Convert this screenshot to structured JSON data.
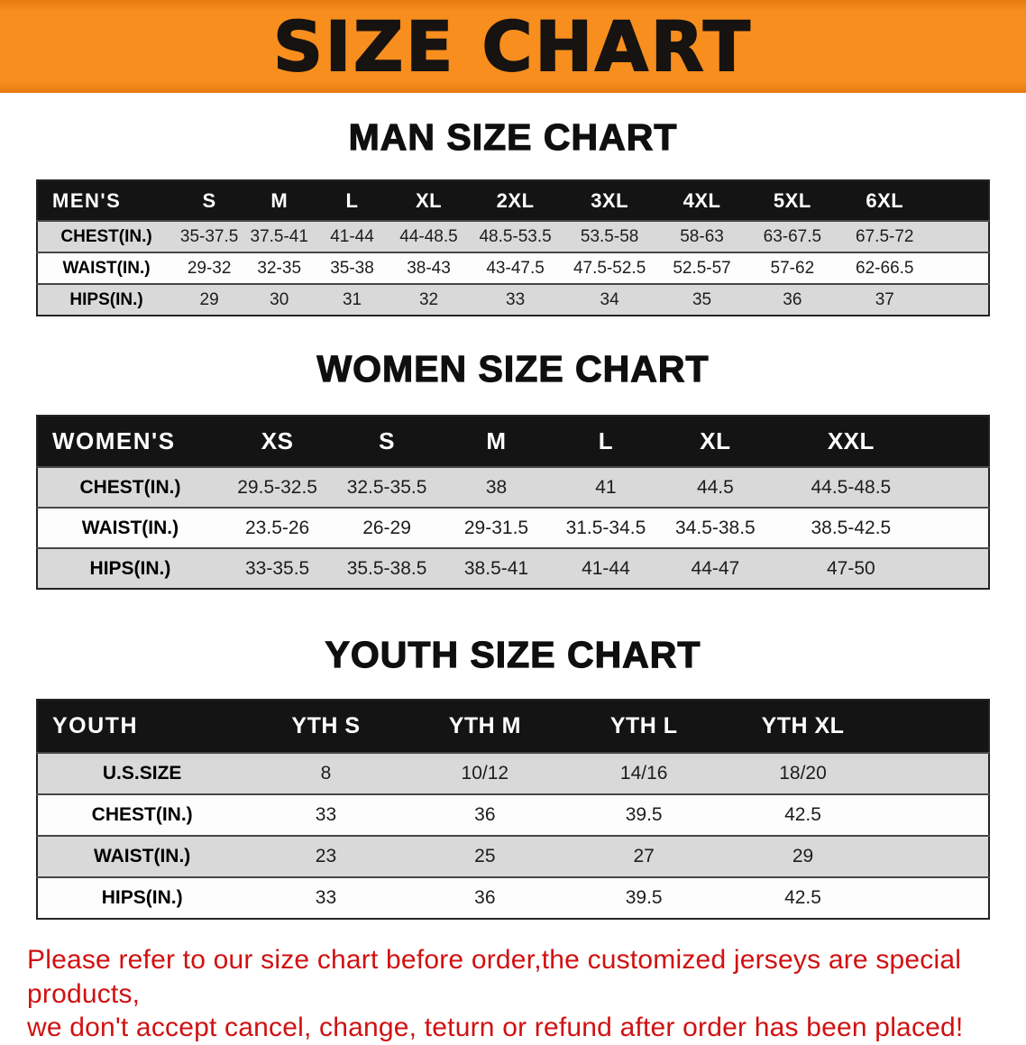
{
  "banner": {
    "title": "SIZE CHART"
  },
  "colors": {
    "banner_orange": "#F78E1E",
    "table_header_black": "#141414",
    "stripe_gray": "#D9D9D9",
    "disclaimer_red": "#D01111"
  },
  "men": {
    "heading": "MAN SIZE CHART",
    "table": {
      "header": [
        "MEN'S",
        "S",
        "M",
        "L",
        "XL",
        "2XL",
        "3XL",
        "4XL",
        "5XL",
        "6XL"
      ],
      "rows": [
        {
          "label": "CHEST(IN.)",
          "values": [
            "35-37.5",
            "37.5-41",
            "41-44",
            "44-48.5",
            "48.5-53.5",
            "53.5-58",
            "58-63",
            "63-67.5",
            "67.5-72"
          ]
        },
        {
          "label": "WAIST(IN.)",
          "values": [
            "29-32",
            "32-35",
            "35-38",
            "38-43",
            "43-47.5",
            "47.5-52.5",
            "52.5-57",
            "57-62",
            "62-66.5"
          ]
        },
        {
          "label": "HIPS(IN.)",
          "values": [
            "29",
            "30",
            "31",
            "32",
            "33",
            "34",
            "35",
            "36",
            "37"
          ]
        }
      ]
    }
  },
  "women": {
    "heading": "WOMEN SIZE CHART",
    "table": {
      "header": [
        "WOMEN'S",
        "XS",
        "S",
        "M",
        "L",
        "XL",
        "XXL"
      ],
      "rows": [
        {
          "label": "CHEST(IN.)",
          "values": [
            "29.5-32.5",
            "32.5-35.5",
            "38",
            "41",
            "44.5",
            "44.5-48.5"
          ]
        },
        {
          "label": "WAIST(IN.)",
          "values": [
            "23.5-26",
            "26-29",
            "29-31.5",
            "31.5-34.5",
            "34.5-38.5",
            "38.5-42.5"
          ]
        },
        {
          "label": "HIPS(IN.)",
          "values": [
            "33-35.5",
            "35.5-38.5",
            "38.5-41",
            "41-44",
            "44-47",
            "47-50"
          ]
        }
      ]
    }
  },
  "youth": {
    "heading": "YOUTH SIZE CHART",
    "table": {
      "header": [
        "YOUTH",
        "YTH S",
        "YTH M",
        "YTH L",
        "YTH XL"
      ],
      "rows": [
        {
          "label": "U.S.SIZE",
          "values": [
            "8",
            "10/12",
            "14/16",
            "18/20"
          ]
        },
        {
          "label": "CHEST(IN.)",
          "values": [
            "33",
            "36",
            "39.5",
            "42.5"
          ]
        },
        {
          "label": "WAIST(IN.)",
          "values": [
            "23",
            "25",
            "27",
            "29"
          ]
        },
        {
          "label": "HIPS(IN.)",
          "values": [
            "33",
            "36",
            "39.5",
            "42.5"
          ]
        }
      ]
    }
  },
  "disclaimer": {
    "line1": "Please refer to our size chart before order,the customized jerseys are special products,",
    "line2": "we don't accept cancel, change, teturn or refund after order has been placed!"
  }
}
